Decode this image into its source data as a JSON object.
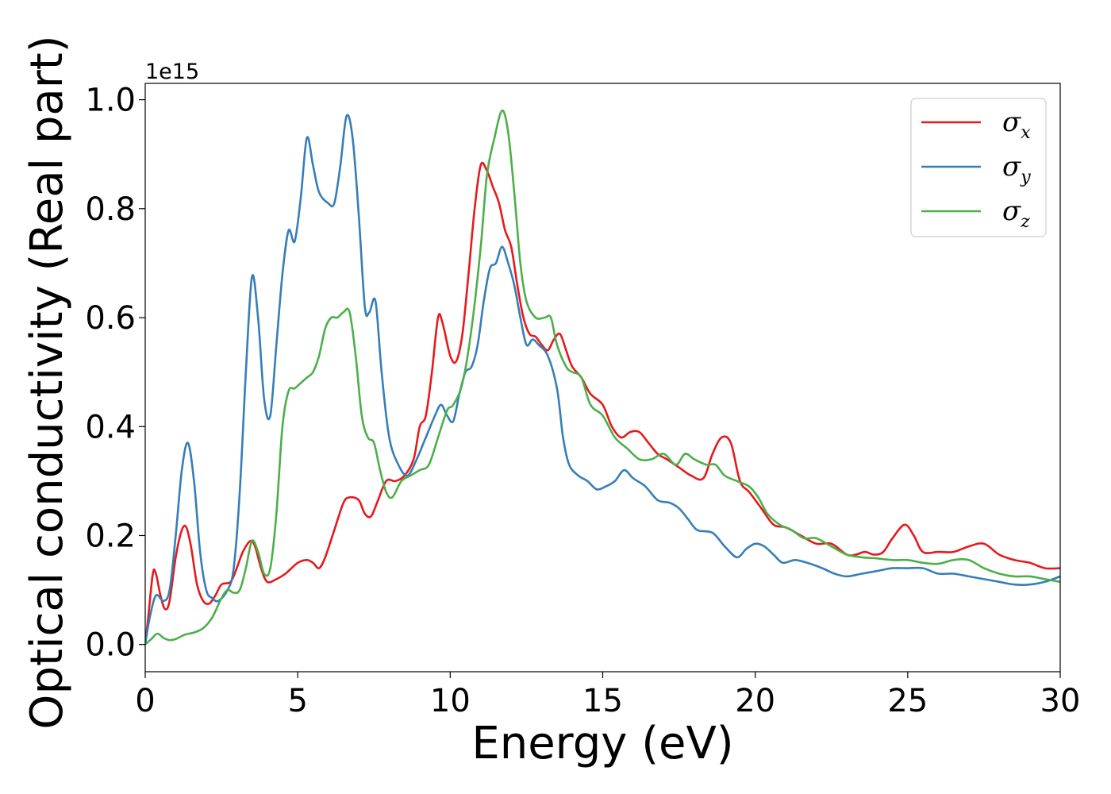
{
  "chart_data": {
    "type": "line",
    "title": "",
    "xlabel": "Energy (eV)",
    "ylabel": "Optical conductivity (Real part)",
    "y_offset_label": "1e15",
    "xlim": [
      0,
      30
    ],
    "ylim": [
      -0.05,
      1.03
    ],
    "x_ticks": [
      0,
      5,
      10,
      15,
      20,
      25,
      30
    ],
    "x_tick_labels": [
      "0",
      "5",
      "10",
      "15",
      "20",
      "25",
      "30"
    ],
    "y_ticks": [
      0.0,
      0.2,
      0.4,
      0.6,
      0.8,
      1.0
    ],
    "y_tick_labels": [
      "0.0",
      "0.2",
      "0.4",
      "0.6",
      "0.8",
      "1.0"
    ],
    "grid": false,
    "legend_position": "top-right",
    "series": [
      {
        "name": "σx",
        "name_base": "σ",
        "name_sub": "x",
        "color": "#e41a1c",
        "points": [
          [
            0,
            0
          ],
          [
            0.1,
            0.05
          ],
          [
            0.25,
            0.13
          ],
          [
            0.35,
            0.13
          ],
          [
            0.5,
            0.09
          ],
          [
            0.65,
            0.065
          ],
          [
            0.8,
            0.08
          ],
          [
            1.0,
            0.16
          ],
          [
            1.2,
            0.21
          ],
          [
            1.35,
            0.215
          ],
          [
            1.5,
            0.18
          ],
          [
            1.7,
            0.11
          ],
          [
            1.9,
            0.08
          ],
          [
            2.1,
            0.075
          ],
          [
            2.3,
            0.09
          ],
          [
            2.5,
            0.11
          ],
          [
            2.8,
            0.115
          ],
          [
            3.0,
            0.14
          ],
          [
            3.2,
            0.17
          ],
          [
            3.45,
            0.19
          ],
          [
            3.6,
            0.18
          ],
          [
            3.8,
            0.14
          ],
          [
            4.0,
            0.115
          ],
          [
            4.3,
            0.12
          ],
          [
            4.6,
            0.13
          ],
          [
            5.0,
            0.15
          ],
          [
            5.3,
            0.155
          ],
          [
            5.5,
            0.15
          ],
          [
            5.7,
            0.14
          ],
          [
            5.9,
            0.16
          ],
          [
            6.2,
            0.21
          ],
          [
            6.5,
            0.26
          ],
          [
            6.7,
            0.27
          ],
          [
            7.0,
            0.265
          ],
          [
            7.2,
            0.24
          ],
          [
            7.4,
            0.235
          ],
          [
            7.6,
            0.26
          ],
          [
            7.9,
            0.3
          ],
          [
            8.2,
            0.3
          ],
          [
            8.5,
            0.31
          ],
          [
            8.8,
            0.34
          ],
          [
            9.0,
            0.4
          ],
          [
            9.2,
            0.42
          ],
          [
            9.4,
            0.5
          ],
          [
            9.6,
            0.6
          ],
          [
            9.75,
            0.59
          ],
          [
            10.0,
            0.53
          ],
          [
            10.2,
            0.52
          ],
          [
            10.4,
            0.57
          ],
          [
            10.6,
            0.68
          ],
          [
            10.8,
            0.8
          ],
          [
            11.0,
            0.88
          ],
          [
            11.2,
            0.87
          ],
          [
            11.4,
            0.84
          ],
          [
            11.6,
            0.81
          ],
          [
            11.8,
            0.76
          ],
          [
            12.0,
            0.73
          ],
          [
            12.2,
            0.66
          ],
          [
            12.4,
            0.6
          ],
          [
            12.6,
            0.57
          ],
          [
            12.8,
            0.565
          ],
          [
            13.0,
            0.55
          ],
          [
            13.2,
            0.54
          ],
          [
            13.4,
            0.56
          ],
          [
            13.6,
            0.57
          ],
          [
            13.8,
            0.54
          ],
          [
            14.0,
            0.51
          ],
          [
            14.3,
            0.49
          ],
          [
            14.6,
            0.46
          ],
          [
            15.0,
            0.44
          ],
          [
            15.3,
            0.4
          ],
          [
            15.6,
            0.38
          ],
          [
            15.9,
            0.39
          ],
          [
            16.2,
            0.39
          ],
          [
            16.5,
            0.37
          ],
          [
            16.8,
            0.35
          ],
          [
            17.1,
            0.34
          ],
          [
            17.5,
            0.325
          ],
          [
            17.9,
            0.31
          ],
          [
            18.3,
            0.305
          ],
          [
            18.6,
            0.35
          ],
          [
            18.9,
            0.38
          ],
          [
            19.2,
            0.37
          ],
          [
            19.5,
            0.3
          ],
          [
            19.8,
            0.28
          ],
          [
            20.2,
            0.25
          ],
          [
            20.6,
            0.22
          ],
          [
            21.0,
            0.215
          ],
          [
            21.5,
            0.2
          ],
          [
            22.0,
            0.185
          ],
          [
            22.5,
            0.185
          ],
          [
            23.0,
            0.165
          ],
          [
            23.3,
            0.165
          ],
          [
            23.6,
            0.17
          ],
          [
            23.9,
            0.165
          ],
          [
            24.2,
            0.17
          ],
          [
            24.5,
            0.195
          ],
          [
            24.9,
            0.22
          ],
          [
            25.2,
            0.2
          ],
          [
            25.5,
            0.17
          ],
          [
            26.0,
            0.17
          ],
          [
            26.5,
            0.17
          ],
          [
            27.0,
            0.18
          ],
          [
            27.5,
            0.185
          ],
          [
            28.0,
            0.165
          ],
          [
            28.5,
            0.155
          ],
          [
            29.0,
            0.15
          ],
          [
            29.5,
            0.14
          ],
          [
            30.0,
            0.14
          ]
        ]
      },
      {
        "name": "σy",
        "name_base": "σ",
        "name_sub": "y",
        "color": "#377eb8",
        "points": [
          [
            0,
            0
          ],
          [
            0.15,
            0.05
          ],
          [
            0.35,
            0.09
          ],
          [
            0.6,
            0.08
          ],
          [
            0.8,
            0.1
          ],
          [
            1.0,
            0.2
          ],
          [
            1.2,
            0.32
          ],
          [
            1.4,
            0.37
          ],
          [
            1.6,
            0.3
          ],
          [
            1.8,
            0.17
          ],
          [
            2.0,
            0.1
          ],
          [
            2.2,
            0.085
          ],
          [
            2.4,
            0.08
          ],
          [
            2.7,
            0.1
          ],
          [
            2.9,
            0.14
          ],
          [
            3.1,
            0.28
          ],
          [
            3.3,
            0.5
          ],
          [
            3.5,
            0.675
          ],
          [
            3.7,
            0.6
          ],
          [
            3.9,
            0.45
          ],
          [
            4.1,
            0.42
          ],
          [
            4.3,
            0.55
          ],
          [
            4.5,
            0.68
          ],
          [
            4.7,
            0.76
          ],
          [
            4.9,
            0.74
          ],
          [
            5.1,
            0.82
          ],
          [
            5.3,
            0.93
          ],
          [
            5.5,
            0.88
          ],
          [
            5.7,
            0.83
          ],
          [
            6.0,
            0.81
          ],
          [
            6.2,
            0.81
          ],
          [
            6.4,
            0.88
          ],
          [
            6.6,
            0.97
          ],
          [
            6.8,
            0.93
          ],
          [
            7.0,
            0.79
          ],
          [
            7.2,
            0.62
          ],
          [
            7.35,
            0.61
          ],
          [
            7.55,
            0.63
          ],
          [
            7.75,
            0.5
          ],
          [
            8.0,
            0.38
          ],
          [
            8.3,
            0.33
          ],
          [
            8.6,
            0.31
          ],
          [
            8.9,
            0.34
          ],
          [
            9.2,
            0.38
          ],
          [
            9.5,
            0.42
          ],
          [
            9.7,
            0.44
          ],
          [
            9.9,
            0.42
          ],
          [
            10.1,
            0.41
          ],
          [
            10.3,
            0.46
          ],
          [
            10.5,
            0.5
          ],
          [
            10.7,
            0.51
          ],
          [
            10.9,
            0.55
          ],
          [
            11.1,
            0.63
          ],
          [
            11.3,
            0.69
          ],
          [
            11.5,
            0.7
          ],
          [
            11.7,
            0.73
          ],
          [
            11.9,
            0.7
          ],
          [
            12.1,
            0.66
          ],
          [
            12.3,
            0.6
          ],
          [
            12.5,
            0.55
          ],
          [
            12.7,
            0.56
          ],
          [
            12.9,
            0.55
          ],
          [
            13.2,
            0.53
          ],
          [
            13.5,
            0.47
          ],
          [
            13.7,
            0.38
          ],
          [
            13.9,
            0.33
          ],
          [
            14.2,
            0.31
          ],
          [
            14.5,
            0.3
          ],
          [
            14.8,
            0.285
          ],
          [
            15.1,
            0.29
          ],
          [
            15.4,
            0.3
          ],
          [
            15.7,
            0.32
          ],
          [
            16.0,
            0.305
          ],
          [
            16.4,
            0.29
          ],
          [
            16.8,
            0.265
          ],
          [
            17.2,
            0.26
          ],
          [
            17.5,
            0.25
          ],
          [
            17.8,
            0.23
          ],
          [
            18.1,
            0.21
          ],
          [
            18.6,
            0.205
          ],
          [
            19.0,
            0.18
          ],
          [
            19.4,
            0.16
          ],
          [
            19.7,
            0.175
          ],
          [
            20.0,
            0.185
          ],
          [
            20.3,
            0.18
          ],
          [
            20.6,
            0.165
          ],
          [
            20.9,
            0.15
          ],
          [
            21.3,
            0.155
          ],
          [
            21.7,
            0.15
          ],
          [
            22.2,
            0.14
          ],
          [
            22.6,
            0.13
          ],
          [
            23.0,
            0.125
          ],
          [
            23.5,
            0.13
          ],
          [
            24.0,
            0.135
          ],
          [
            24.5,
            0.14
          ],
          [
            25.0,
            0.14
          ],
          [
            25.5,
            0.14
          ],
          [
            26.0,
            0.13
          ],
          [
            26.5,
            0.13
          ],
          [
            27.0,
            0.125
          ],
          [
            27.5,
            0.12
          ],
          [
            28.0,
            0.115
          ],
          [
            28.5,
            0.11
          ],
          [
            29.0,
            0.11
          ],
          [
            29.5,
            0.115
          ],
          [
            30.0,
            0.125
          ]
        ]
      },
      {
        "name": "σz",
        "name_base": "σ",
        "name_sub": "z",
        "color": "#4daf4a",
        "points": [
          [
            0,
            0
          ],
          [
            0.2,
            0.01
          ],
          [
            0.4,
            0.02
          ],
          [
            0.6,
            0.012
          ],
          [
            0.8,
            0.008
          ],
          [
            1.0,
            0.01
          ],
          [
            1.3,
            0.018
          ],
          [
            1.6,
            0.022
          ],
          [
            1.9,
            0.03
          ],
          [
            2.2,
            0.05
          ],
          [
            2.5,
            0.085
          ],
          [
            2.7,
            0.1
          ],
          [
            2.9,
            0.095
          ],
          [
            3.1,
            0.1
          ],
          [
            3.3,
            0.14
          ],
          [
            3.5,
            0.19
          ],
          [
            3.7,
            0.17
          ],
          [
            3.9,
            0.13
          ],
          [
            4.1,
            0.14
          ],
          [
            4.3,
            0.24
          ],
          [
            4.5,
            0.4
          ],
          [
            4.7,
            0.465
          ],
          [
            4.9,
            0.47
          ],
          [
            5.1,
            0.48
          ],
          [
            5.3,
            0.49
          ],
          [
            5.5,
            0.5
          ],
          [
            5.7,
            0.53
          ],
          [
            5.9,
            0.58
          ],
          [
            6.1,
            0.6
          ],
          [
            6.3,
            0.6
          ],
          [
            6.5,
            0.61
          ],
          [
            6.7,
            0.61
          ],
          [
            6.9,
            0.53
          ],
          [
            7.1,
            0.42
          ],
          [
            7.3,
            0.38
          ],
          [
            7.5,
            0.37
          ],
          [
            7.7,
            0.32
          ],
          [
            7.9,
            0.28
          ],
          [
            8.1,
            0.27
          ],
          [
            8.4,
            0.3
          ],
          [
            8.7,
            0.31
          ],
          [
            9.0,
            0.32
          ],
          [
            9.3,
            0.33
          ],
          [
            9.6,
            0.38
          ],
          [
            9.9,
            0.43
          ],
          [
            10.1,
            0.44
          ],
          [
            10.4,
            0.48
          ],
          [
            10.7,
            0.58
          ],
          [
            11.0,
            0.73
          ],
          [
            11.2,
            0.86
          ],
          [
            11.45,
            0.93
          ],
          [
            11.7,
            0.98
          ],
          [
            11.9,
            0.94
          ],
          [
            12.1,
            0.83
          ],
          [
            12.3,
            0.7
          ],
          [
            12.5,
            0.63
          ],
          [
            12.8,
            0.6
          ],
          [
            13.1,
            0.6
          ],
          [
            13.3,
            0.6
          ],
          [
            13.5,
            0.55
          ],
          [
            13.8,
            0.51
          ],
          [
            14.0,
            0.5
          ],
          [
            14.3,
            0.49
          ],
          [
            14.6,
            0.44
          ],
          [
            15.0,
            0.42
          ],
          [
            15.4,
            0.38
          ],
          [
            15.8,
            0.36
          ],
          [
            16.2,
            0.34
          ],
          [
            16.6,
            0.34
          ],
          [
            17.0,
            0.35
          ],
          [
            17.4,
            0.33
          ],
          [
            17.7,
            0.35
          ],
          [
            18.0,
            0.34
          ],
          [
            18.4,
            0.33
          ],
          [
            18.7,
            0.33
          ],
          [
            19.0,
            0.31
          ],
          [
            19.4,
            0.3
          ],
          [
            19.8,
            0.29
          ],
          [
            20.1,
            0.27
          ],
          [
            20.4,
            0.24
          ],
          [
            20.8,
            0.22
          ],
          [
            21.2,
            0.21
          ],
          [
            21.6,
            0.195
          ],
          [
            22.0,
            0.195
          ],
          [
            22.5,
            0.18
          ],
          [
            23.0,
            0.165
          ],
          [
            23.5,
            0.16
          ],
          [
            24.0,
            0.158
          ],
          [
            24.5,
            0.155
          ],
          [
            25.0,
            0.155
          ],
          [
            25.5,
            0.15
          ],
          [
            26.0,
            0.148
          ],
          [
            26.5,
            0.155
          ],
          [
            27.0,
            0.155
          ],
          [
            27.5,
            0.14
          ],
          [
            28.0,
            0.13
          ],
          [
            28.5,
            0.125
          ],
          [
            29.0,
            0.125
          ],
          [
            29.5,
            0.12
          ],
          [
            30.0,
            0.115
          ]
        ]
      }
    ]
  }
}
